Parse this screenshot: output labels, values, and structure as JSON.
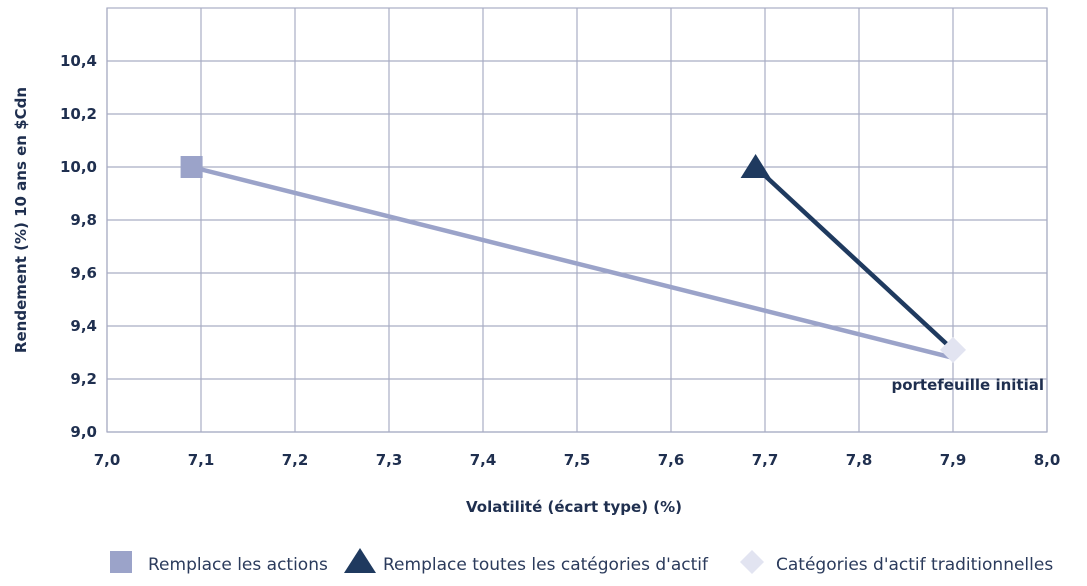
{
  "chart_data": {
    "type": "line",
    "title": "",
    "xlabel": "Volatilité (écart type) (%)",
    "ylabel": "Rendement (%) 10 ans en $Cdn",
    "xlim": [
      7.0,
      8.0
    ],
    "ylim": [
      9.0,
      10.6
    ],
    "x_ticks": [
      7.0,
      7.1,
      7.2,
      7.3,
      7.4,
      7.5,
      7.6,
      7.7,
      7.8,
      7.9,
      8.0
    ],
    "x_tick_labels": [
      "7,0",
      "7,1",
      "7,2",
      "7,3",
      "7,4",
      "7,5",
      "7,6",
      "7,7",
      "7,8",
      "7,9",
      "8,0"
    ],
    "y_ticks": [
      9.0,
      9.2,
      9.4,
      9.6,
      9.8,
      10.0,
      10.2,
      10.4
    ],
    "y_tick_labels": [
      "9,0",
      "9,2",
      "9,4",
      "9,6",
      "9,8",
      "10,0",
      "10,2",
      "10,4"
    ],
    "grid": true,
    "legend_position": "bottom",
    "series": [
      {
        "name": "Remplace les actions",
        "marker": "square",
        "color": "#9ba3c9",
        "points": [
          {
            "x": 7.09,
            "y": 10.0,
            "marker": true
          },
          {
            "x": 7.9,
            "y": 9.28,
            "marker": false
          }
        ]
      },
      {
        "name": "Remplace toutes les catégories d'actif",
        "marker": "triangle",
        "color": "#1f3a5f",
        "points": [
          {
            "x": 7.69,
            "y": 10.0,
            "marker": true
          },
          {
            "x": 7.9,
            "y": 9.31,
            "marker": false
          }
        ]
      },
      {
        "name": "Catégories d'actif traditionnelles",
        "marker": "diamond",
        "color": "#e2e4f1",
        "points": [
          {
            "x": 7.9,
            "y": 9.31,
            "marker": true
          }
        ]
      }
    ],
    "annotations": [
      {
        "text": "portefeuille initial",
        "x": 7.9,
        "y": 9.31
      }
    ]
  }
}
